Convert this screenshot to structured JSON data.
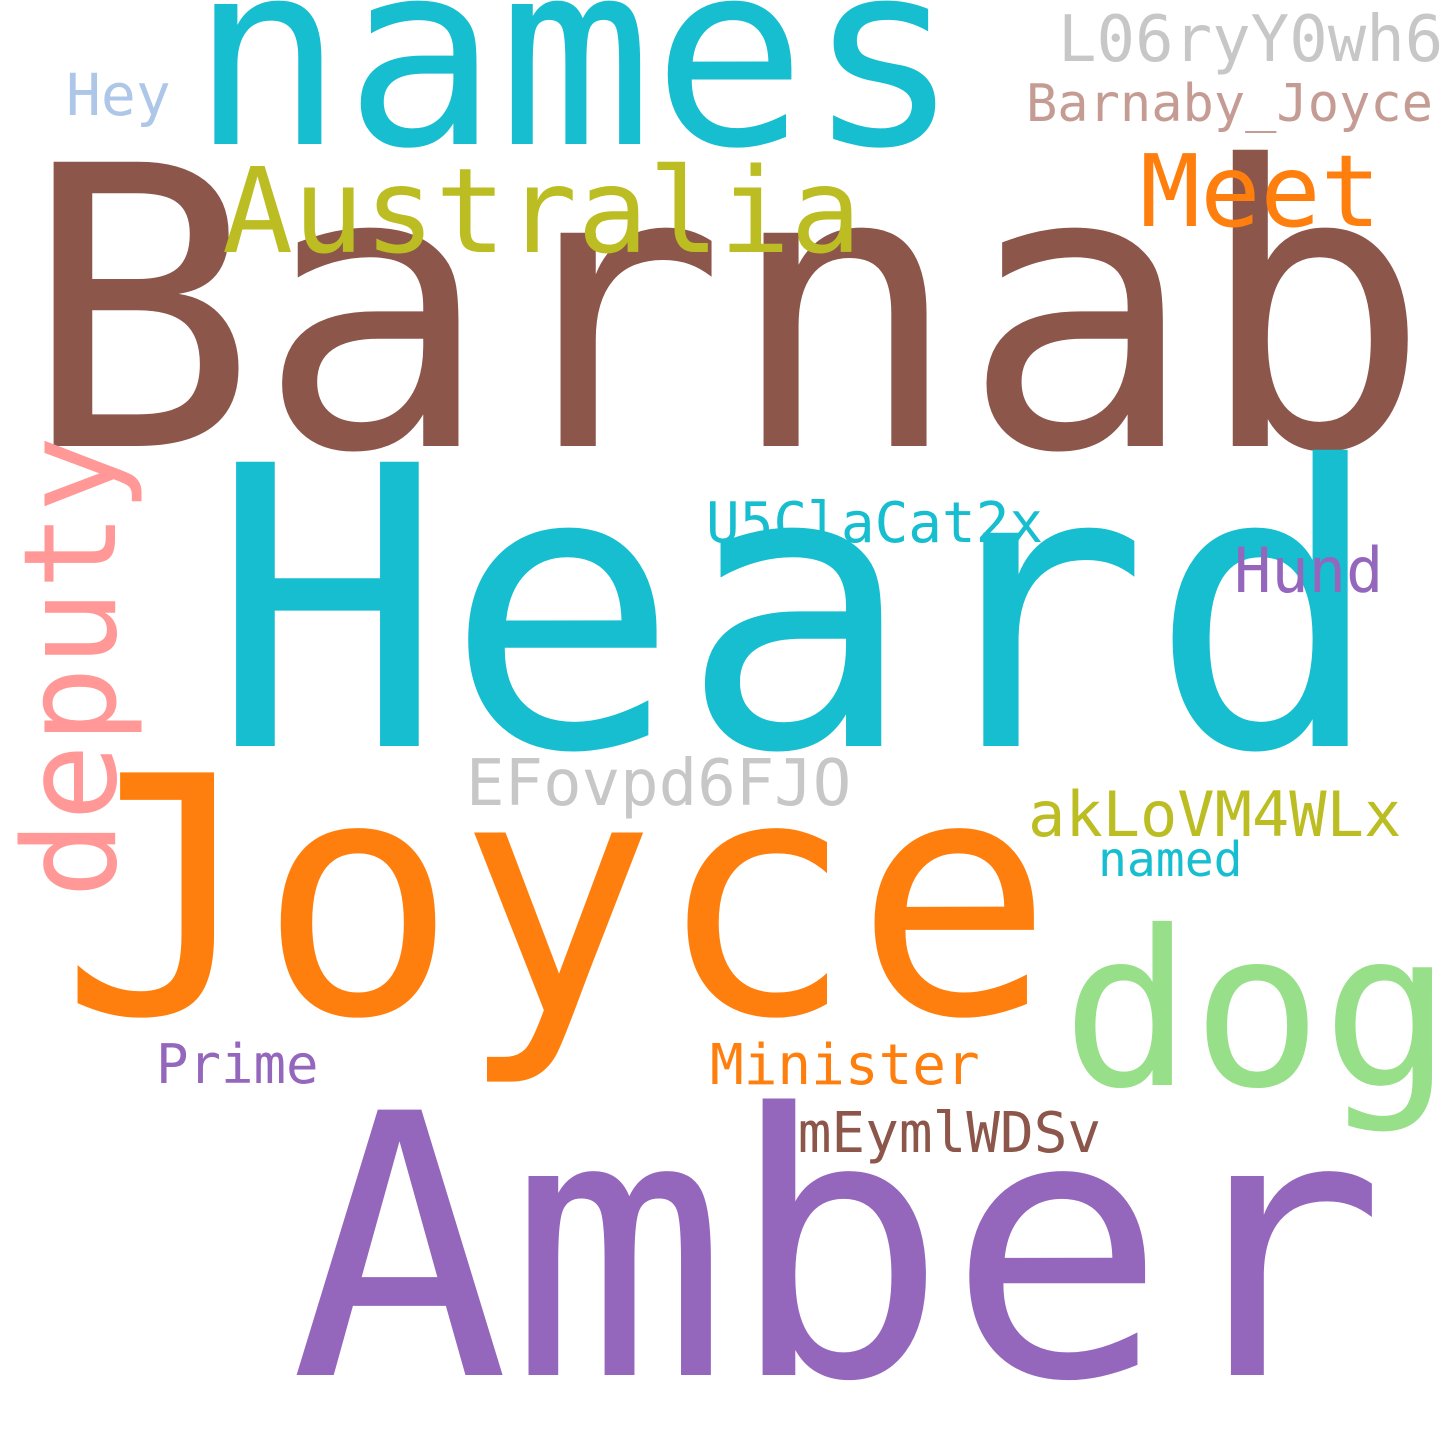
{
  "word_cloud": {
    "background": "#ffffff",
    "words": {
      "barnaby": {
        "text": "Barnaby",
        "color": "#8c564b"
      },
      "heard": {
        "text": "Heard",
        "color": "#17becf"
      },
      "joyce": {
        "text": "Joyce",
        "color": "#ff7f0e"
      },
      "amber": {
        "text": "Amber",
        "color": "#9467bd"
      },
      "names": {
        "text": "names",
        "color": "#17becf"
      },
      "dog": {
        "text": "dog",
        "color": "#98df8a"
      },
      "australia": {
        "text": "Australia",
        "color": "#bcbd22"
      },
      "meet": {
        "text": "Meet",
        "color": "#ff7f0e"
      },
      "deputy": {
        "text": "deputy",
        "color": "#ff9896"
      },
      "l06ryy0wh6": {
        "text": "L06ryY0wh6",
        "color": "#c7c7c7"
      },
      "barnaby_joyce": {
        "text": "Barnaby_Joyce",
        "color": "#c49c94"
      },
      "hey": {
        "text": "Hey",
        "color": "#aec7e8"
      },
      "u5clacat2x": {
        "text": "U5ClaCat2x",
        "color": "#17becf"
      },
      "hund": {
        "text": "Hund",
        "color": "#9467bd"
      },
      "efovpd6fjo": {
        "text": "EFovpd6FJO",
        "color": "#c7c7c7"
      },
      "aklovm4wlx": {
        "text": "akLoVM4WLx",
        "color": "#bcbd22"
      },
      "named": {
        "text": "named",
        "color": "#17becf"
      },
      "prime": {
        "text": "Prime",
        "color": "#9467bd"
      },
      "minister": {
        "text": "Minister",
        "color": "#ff7f0e"
      },
      "smeymlwdsv": {
        "text": "SmEymlWDSv",
        "color": "#8c564b"
      }
    }
  }
}
